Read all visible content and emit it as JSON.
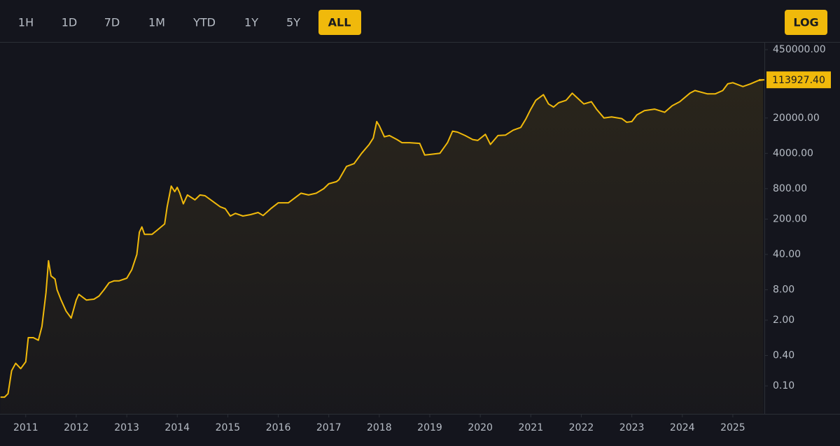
{
  "ui": {
    "ranges": [
      {
        "label": "1H"
      },
      {
        "label": "1D"
      },
      {
        "label": "7D"
      },
      {
        "label": "1M"
      },
      {
        "label": "YTD"
      },
      {
        "label": "1Y"
      },
      {
        "label": "5Y"
      },
      {
        "label": "ALL",
        "active": true
      }
    ],
    "scale_button": {
      "label": "LOG",
      "active": true
    }
  },
  "chart_data": {
    "type": "area-line",
    "log": true,
    "color": "#f0b90b",
    "xlim": [
      2010.49,
      2025.625
    ],
    "ylim": [
      0.028,
      640000
    ],
    "xticks": [
      2011,
      2012,
      2013,
      2014,
      2015,
      2016,
      2017,
      2018,
      2019,
      2020,
      2021,
      2022,
      2023,
      2024,
      2025
    ],
    "yticks": [
      {
        "value": 0.1,
        "label": "0.10"
      },
      {
        "value": 0.4,
        "label": "0.40"
      },
      {
        "value": 2,
        "label": "2.00"
      },
      {
        "value": 8,
        "label": "8.00"
      },
      {
        "value": 40,
        "label": "40.00"
      },
      {
        "value": 200,
        "label": "200.00"
      },
      {
        "value": 800,
        "label": "800.00"
      },
      {
        "value": 4000,
        "label": "4000.00"
      },
      {
        "value": 20000,
        "label": "20000.00"
      },
      {
        "value": 450000,
        "label": "450000.00"
      }
    ],
    "last_value": {
      "value": 113927.4,
      "label": "113927.40"
    },
    "x": [
      2010.5,
      2010.58,
      2010.65,
      2010.72,
      2010.8,
      2010.9,
      2011.0,
      2011.05,
      2011.15,
      2011.25,
      2011.32,
      2011.4,
      2011.45,
      2011.5,
      2011.58,
      2011.62,
      2011.7,
      2011.8,
      2011.9,
      2012.0,
      2012.05,
      2012.2,
      2012.35,
      2012.45,
      2012.55,
      2012.65,
      2012.75,
      2012.85,
      2013.0,
      2013.1,
      2013.2,
      2013.25,
      2013.3,
      2013.35,
      2013.5,
      2013.6,
      2013.75,
      2013.8,
      2013.88,
      2013.95,
      2014.0,
      2014.05,
      2014.12,
      2014.2,
      2014.35,
      2014.45,
      2014.55,
      2014.7,
      2014.85,
      2014.95,
      2015.05,
      2015.15,
      2015.3,
      2015.45,
      2015.6,
      2015.7,
      2015.85,
      2016.0,
      2016.2,
      2016.45,
      2016.6,
      2016.75,
      2016.9,
      2017.0,
      2017.15,
      2017.2,
      2017.35,
      2017.5,
      2017.65,
      2017.8,
      2017.88,
      2017.95,
      2018.0,
      2018.1,
      2018.2,
      2018.35,
      2018.45,
      2018.6,
      2018.8,
      2018.9,
      2019.0,
      2019.2,
      2019.35,
      2019.45,
      2019.55,
      2019.7,
      2019.85,
      2019.95,
      2020.1,
      2020.2,
      2020.35,
      2020.5,
      2020.65,
      2020.8,
      2020.9,
      2021.0,
      2021.1,
      2021.25,
      2021.35,
      2021.45,
      2021.55,
      2021.7,
      2021.82,
      2021.95,
      2022.05,
      2022.2,
      2022.3,
      2022.45,
      2022.6,
      2022.8,
      2022.9,
      2023.0,
      2023.1,
      2023.25,
      2023.45,
      2023.65,
      2023.8,
      2023.95,
      2024.15,
      2024.25,
      2024.5,
      2024.65,
      2024.8,
      2024.9,
      2025.0,
      2025.2,
      2025.35,
      2025.5,
      2025.6
    ],
    "values": [
      0.06,
      0.06,
      0.07,
      0.2,
      0.28,
      0.22,
      0.3,
      0.9,
      0.9,
      0.8,
      1.5,
      7,
      30,
      15,
      13,
      8,
      5,
      3,
      2.2,
      5,
      6.5,
      5,
      5.2,
      6,
      8,
      11,
      12,
      12,
      13.5,
      20,
      40,
      110,
      140,
      100,
      100,
      120,
      160,
      350,
      900,
      700,
      850,
      650,
      400,
      600,
      480,
      600,
      580,
      450,
      350,
      320,
      230,
      260,
      230,
      245,
      270,
      235,
      320,
      420,
      420,
      650,
      600,
      650,
      800,
      1000,
      1100,
      1200,
      2200,
      2500,
      4000,
      6000,
      8000,
      17000,
      14000,
      8500,
      9000,
      7500,
      6500,
      6500,
      6300,
      3700,
      3800,
      4000,
      6500,
      11000,
      10500,
      9000,
      7500,
      7200,
      9500,
      6000,
      9000,
      9200,
      11500,
      13000,
      19000,
      30000,
      45000,
      58000,
      38000,
      33000,
      40000,
      45000,
      62000,
      47000,
      38000,
      42000,
      30000,
      20000,
      21000,
      19500,
      16500,
      17000,
      23000,
      28000,
      30000,
      26000,
      35000,
      42000,
      62000,
      70000,
      60000,
      60000,
      70000,
      95000,
      100000,
      84000,
      95000,
      110000,
      113927.4
    ]
  }
}
